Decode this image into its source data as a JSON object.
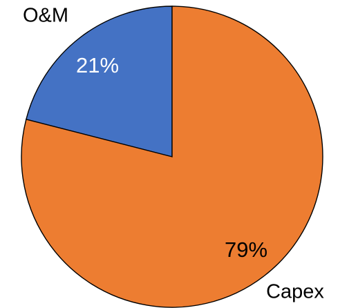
{
  "chart_data": {
    "type": "pie",
    "categories": [
      "O&M",
      "Capex"
    ],
    "values": [
      21,
      79
    ],
    "labels": [
      "21%",
      "79%"
    ],
    "colors": [
      "#4472C4",
      "#ED7D31"
    ],
    "label_colors": [
      "#ffffff",
      "#000000"
    ],
    "start": "12 o'clock",
    "direction": "counterclockwise",
    "legend": "none"
  }
}
